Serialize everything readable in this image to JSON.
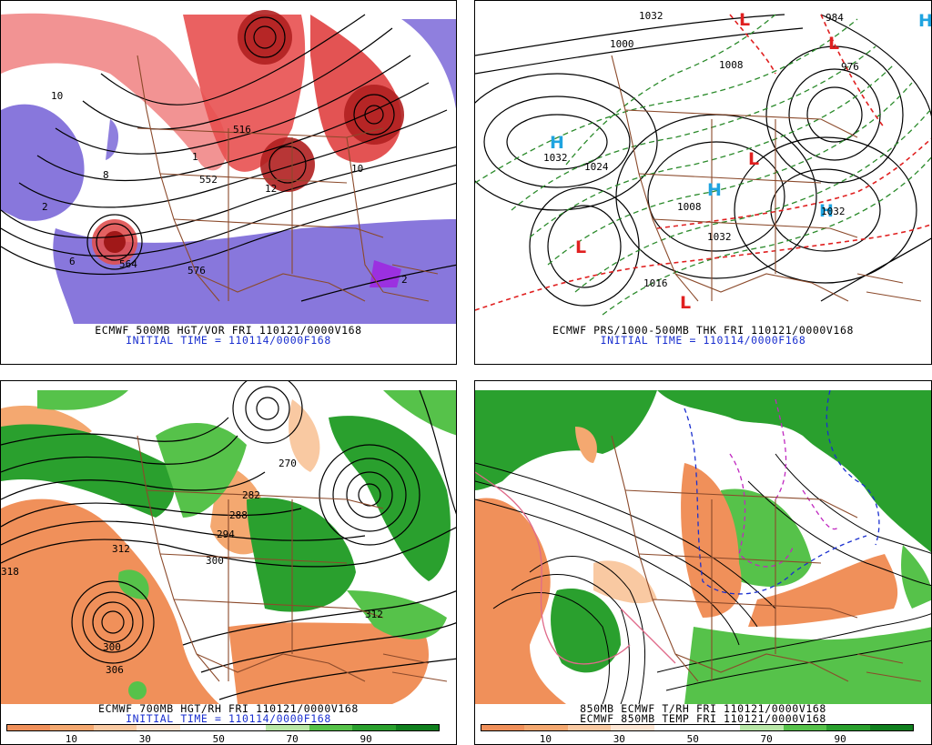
{
  "panels": {
    "p1": {
      "caption": "ECMWF 500MB HGT/VOR FRI 110121/0000V168",
      "subcaption": "INITIAL TIME = 110114/0000F168",
      "labels": [
        "10",
        "8",
        "2",
        "6",
        "564",
        "576",
        "552",
        "516",
        "12",
        "2",
        "1",
        "10"
      ]
    },
    "p2": {
      "caption": "ECMWF PRS/1000-500MB THK FRI 110121/0000V168",
      "subcaption": "INITIAL TIME = 110114/0000F168",
      "labels": [
        "1032",
        "1024",
        "1000",
        "1008",
        "1032",
        "1016",
        "1032",
        "984",
        "1032",
        "1008",
        "976"
      ],
      "highs": [
        "H",
        "H",
        "H",
        "H"
      ],
      "lows": [
        "L",
        "L",
        "L",
        "L",
        "L"
      ]
    },
    "p3": {
      "caption": "ECMWF 700MB HGT/RH FRI 110121/0000V168",
      "subcaption": "INITIAL TIME = 110114/0000F168",
      "labels": [
        "312",
        "300",
        "306",
        "294",
        "288",
        "282",
        "300",
        "312",
        "318",
        "270"
      ]
    },
    "p4": {
      "caption": "850MB ECMWF T/RH FRI 110121/0000V168",
      "subcaption": "ECMWF 850MB TEMP FRI 110121/0000V168"
    }
  },
  "colorbar": {
    "tick_labels": [
      "10",
      "30",
      "50",
      "70",
      "90"
    ],
    "colors": [
      "#f0905a",
      "#f4a870",
      "#f9c9a2",
      "#fde6d4",
      "#ffffff",
      "#ffffff",
      "#b9e8a8",
      "#56c24a",
      "#2aa02e",
      "#10801e"
    ]
  },
  "colors": {
    "vorticity_red": "#e03030",
    "vorticity_purple": "#7b68d8",
    "rh_green": "#2aa02e",
    "rh_orange": "#f0905a",
    "border_brown": "#8b4a2b",
    "thickness_green": "#2a8a2a",
    "thickness_red": "#e02020",
    "caption_blue": "#1a2fcf"
  }
}
